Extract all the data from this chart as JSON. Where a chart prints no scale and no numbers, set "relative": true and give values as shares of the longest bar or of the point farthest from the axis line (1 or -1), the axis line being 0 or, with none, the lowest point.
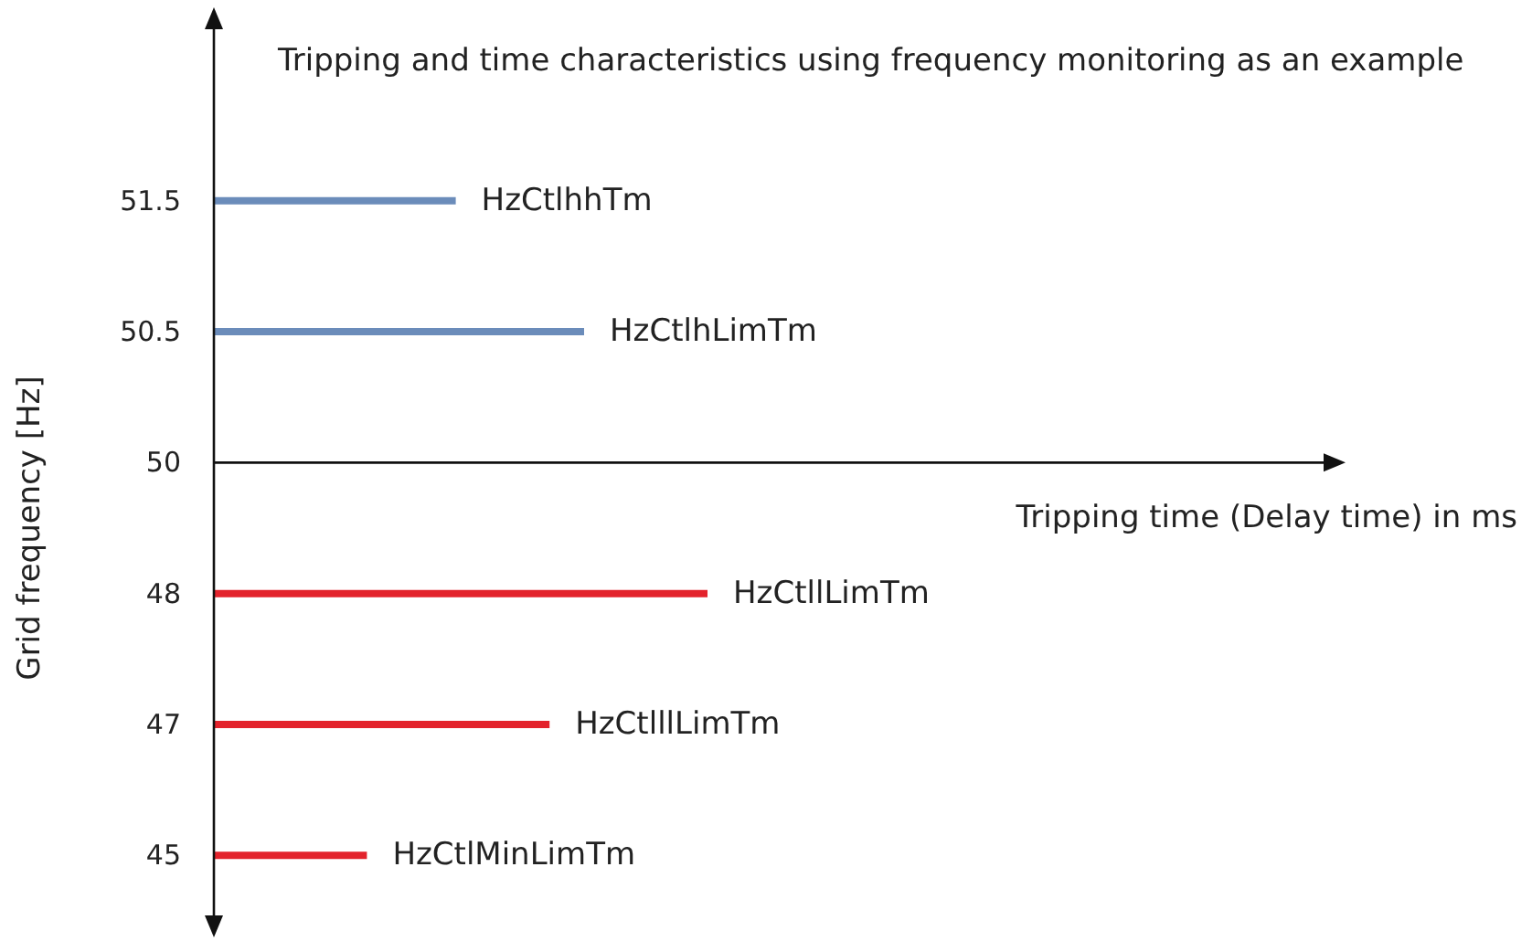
{
  "chart_data": {
    "type": "bar",
    "orientation": "horizontal",
    "relative": true,
    "title": "Tripping and time characteristics using frequency monitoring as an example",
    "ylabel": "Grid frequency [Hz]",
    "categories": [
      "51.5",
      "50.5",
      "50",
      "48",
      "47",
      "45"
    ],
    "values": [
      0.49,
      0.75,
      null,
      1,
      0.68,
      0.31
    ],
    "colors": [
      "#6b8cba",
      "#6b8cba",
      "#6b8cba",
      "#e3232c",
      "#e3232c",
      "#e3232c"
    ],
    "annotations": [
      "Tripping time (Delay time) in ms",
      {
        "text": "HzCtlhhTm",
        "x": 0.49,
        "y": "51.5"
      },
      {
        "text": "HzCtlhLimTm",
        "x": 0.75,
        "y": "50.5"
      },
      {
        "text": "HzCtllLimTm",
        "x": 1,
        "y": "48"
      },
      {
        "text": "HzCtlllLimTm",
        "x": 0.68,
        "y": "47"
      },
      {
        "text": "HzCtlMinLimTm",
        "x": 0.31,
        "y": "45"
      }
    ]
  }
}
